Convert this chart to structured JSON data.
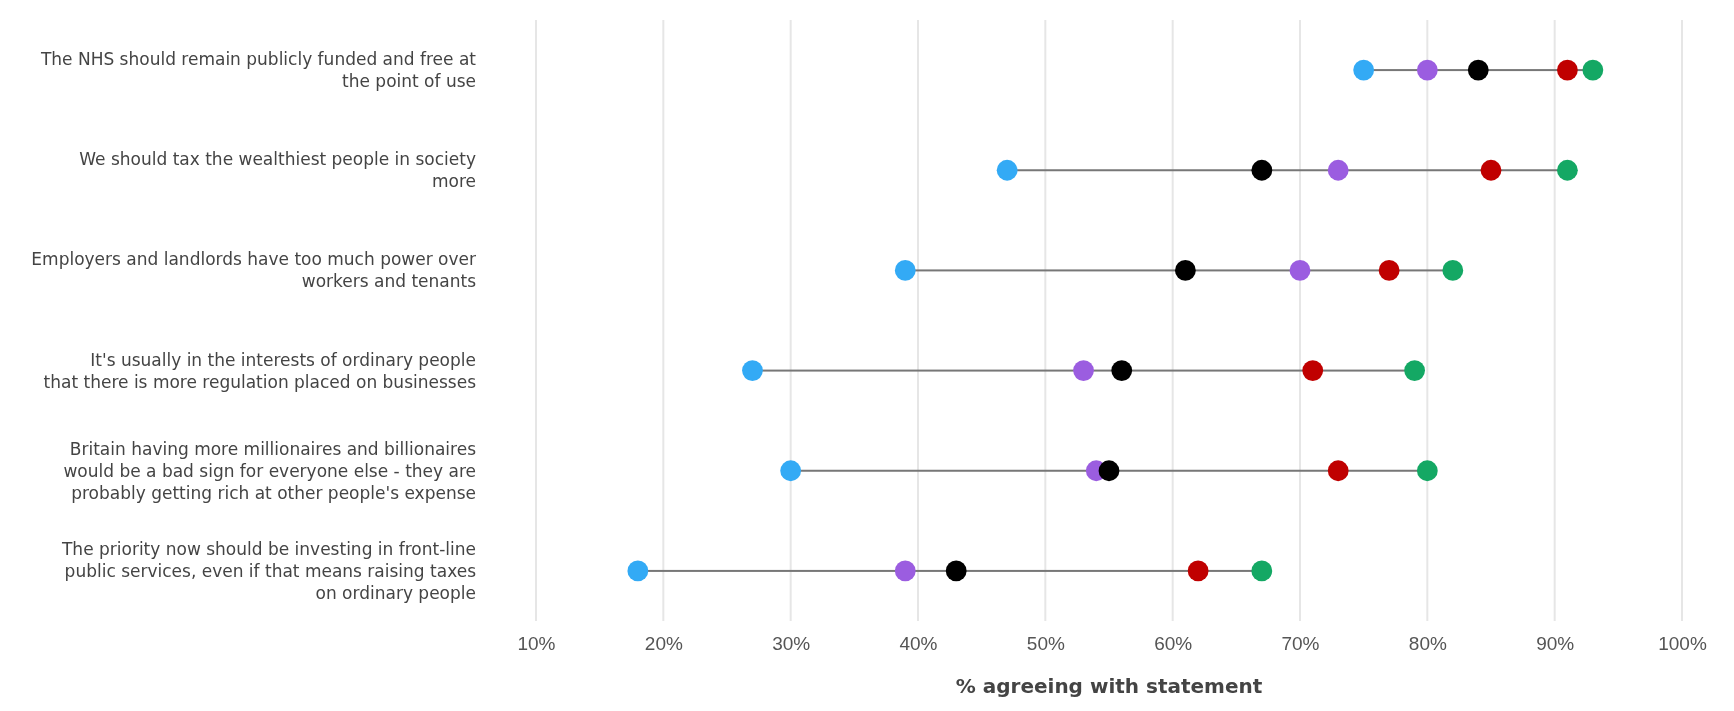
{
  "chart_data": {
    "type": "scatter",
    "orientation": "horizontal",
    "xlabel": "% agreeing with statement",
    "categories": [
      "The NHS should remain publicly funded and free at the point of use",
      "We should tax the wealthiest people in society more",
      "Employers and landlords have too much power over workers and tenants",
      "It's usually in the interests of ordinary people that there is more regulation placed on businesses",
      "Britain having more millionaires and billionaires would be a bad sign for everyone else - they are probably getting rich at other people's expense",
      "The priority now should be investing in front-line public services, even if that means raising taxes on ordinary people"
    ],
    "xlim": [
      10,
      100
    ],
    "xticks": [
      {
        "value": 10,
        "label": "10%"
      },
      {
        "value": 20,
        "label": "20%"
      },
      {
        "value": 30,
        "label": "30%"
      },
      {
        "value": 40,
        "label": "40%"
      },
      {
        "value": 50,
        "label": "50%"
      },
      {
        "value": 60,
        "label": "60%"
      },
      {
        "value": 70,
        "label": "70%"
      },
      {
        "value": 80,
        "label": "80%"
      },
      {
        "value": 90,
        "label": "90%"
      },
      {
        "value": 100,
        "label": "100%"
      }
    ],
    "grid": "x",
    "marker": "circle",
    "series": [
      {
        "color": "#33aaf5",
        "values": [
          75,
          47,
          39,
          27,
          30,
          18
        ]
      },
      {
        "color": "#9b5de0",
        "values": [
          80,
          73,
          70,
          53,
          54,
          39
        ]
      },
      {
        "color": "#000000",
        "values": [
          84,
          67,
          61,
          56,
          55,
          43
        ]
      },
      {
        "color": "#c00000",
        "values": [
          91,
          85,
          77,
          71,
          73,
          62
        ]
      },
      {
        "color": "#14a864",
        "values": [
          93,
          91,
          82,
          79,
          80,
          67
        ]
      }
    ]
  }
}
